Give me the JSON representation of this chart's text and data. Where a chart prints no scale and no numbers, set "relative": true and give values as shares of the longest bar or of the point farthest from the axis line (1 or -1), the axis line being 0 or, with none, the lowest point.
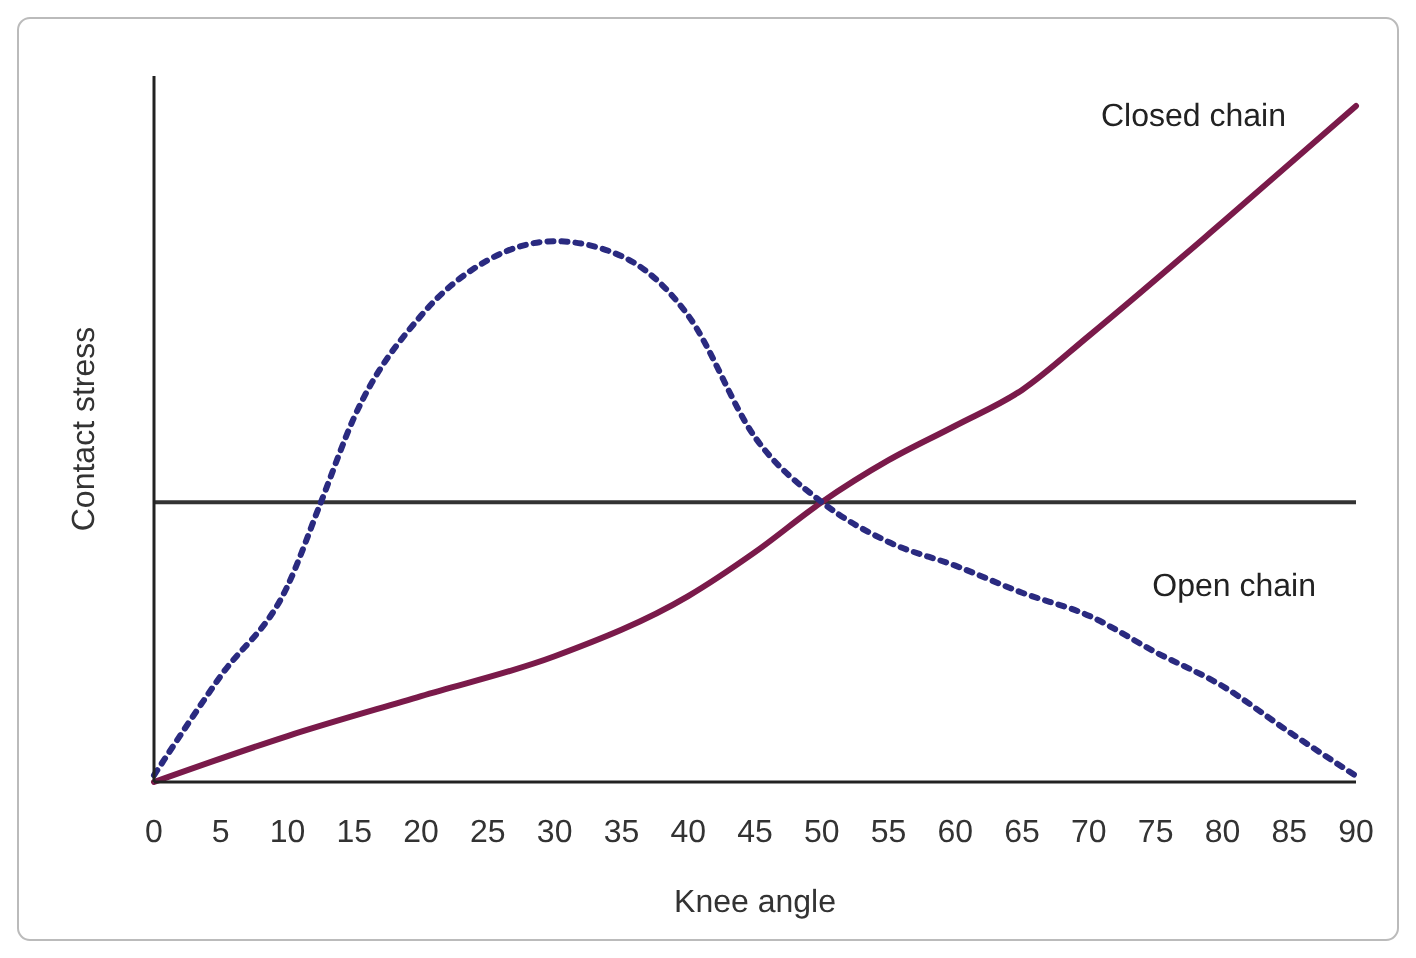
{
  "chart_data": {
    "type": "line",
    "xlabel": "Knee angle",
    "ylabel": "Contact stress",
    "relative": true,
    "xlim": [
      0,
      90
    ],
    "xticks": [
      0,
      5,
      10,
      15,
      20,
      25,
      30,
      35,
      40,
      45,
      50,
      55,
      60,
      65,
      70,
      75,
      80,
      85,
      90
    ],
    "legend": false,
    "series": [
      {
        "name": "Closed chain",
        "color": "#7a1a4a",
        "line_style": "solid",
        "x": [
          0,
          10,
          20,
          30,
          40,
          45,
          50,
          55,
          60,
          65,
          70,
          80,
          90
        ],
        "values": [
          0,
          0.068,
          0.127,
          0.186,
          0.275,
          0.34,
          0.414,
          0.476,
          0.527,
          0.58,
          0.66,
          0.828,
          1
        ]
      },
      {
        "name": "Open chain",
        "color": "#2a2a80",
        "line_style": "dotted",
        "x": [
          0,
          5,
          10,
          12.5,
          15,
          20,
          25,
          30,
          35,
          40,
          45,
          50,
          55,
          60,
          65,
          70,
          75,
          80,
          85,
          90
        ],
        "values": [
          0.01,
          0.157,
          0.29,
          0.414,
          0.54,
          0.69,
          0.772,
          0.8,
          0.778,
          0.69,
          0.51,
          0.414,
          0.355,
          0.32,
          0.28,
          0.246,
          0.192,
          0.142,
          0.074,
          0.009
        ]
      }
    ],
    "ref_lines": [
      {
        "axis": "y",
        "value": 0.414,
        "color": "#333333",
        "line_style": "solid"
      }
    ]
  }
}
